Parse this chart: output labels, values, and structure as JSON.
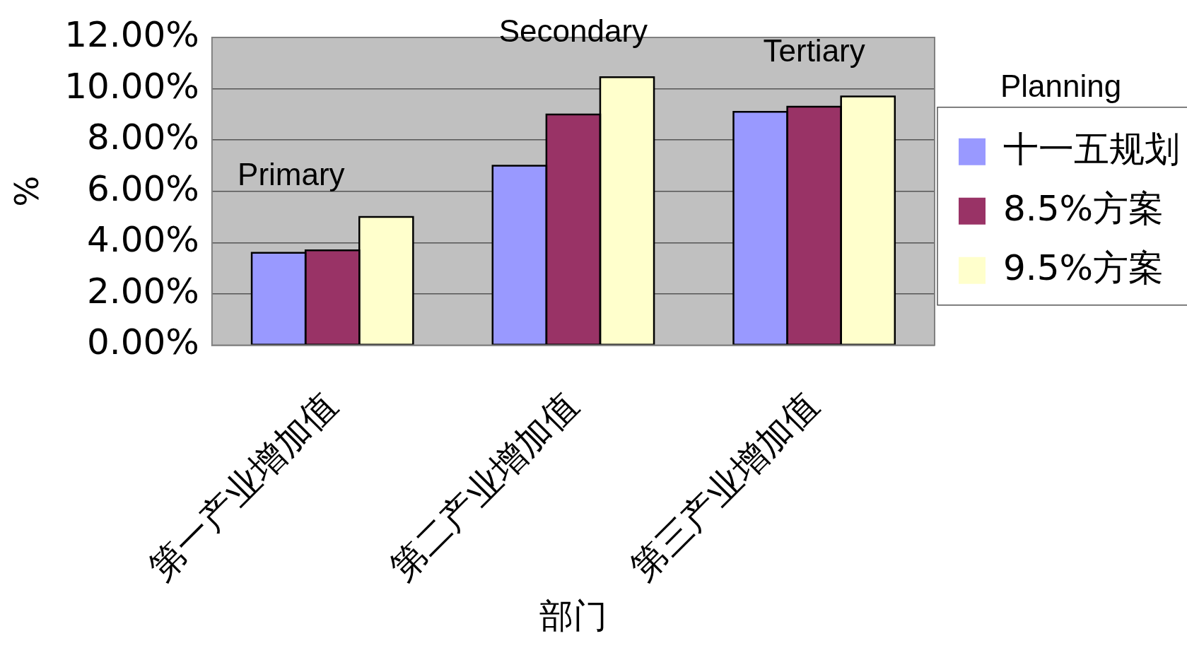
{
  "chart_data": {
    "type": "bar",
    "xlabel": "部门",
    "ylabel": "%",
    "legend_title": "Planning",
    "categories": [
      "第一产业增加值",
      "第二产业增加值",
      "第三产业增加值"
    ],
    "series": [
      {
        "name": "十一五规划",
        "color": "#9999ff",
        "values": [
          3.6,
          7.0,
          9.1
        ]
      },
      {
        "name": "8.5%方案",
        "color": "#993366",
        "values": [
          3.7,
          9.0,
          9.3
        ]
      },
      {
        "name": "9.5%方案",
        "color": "#ffffcc",
        "values": [
          5.0,
          10.45,
          9.7
        ]
      }
    ],
    "ylim": [
      0,
      12
    ],
    "yticks": [
      {
        "value": 0,
        "label": "0.00%"
      },
      {
        "value": 2,
        "label": "2.00%"
      },
      {
        "value": 4,
        "label": "4.00%"
      },
      {
        "value": 6,
        "label": "6.00%"
      },
      {
        "value": 8,
        "label": "8.00%"
      },
      {
        "value": 10,
        "label": "10.00%"
      },
      {
        "value": 12,
        "label": "12.00%"
      }
    ],
    "grid": "y",
    "legend": "right",
    "annotations": [
      "Primary",
      "Secondary",
      "Tertiary"
    ]
  }
}
